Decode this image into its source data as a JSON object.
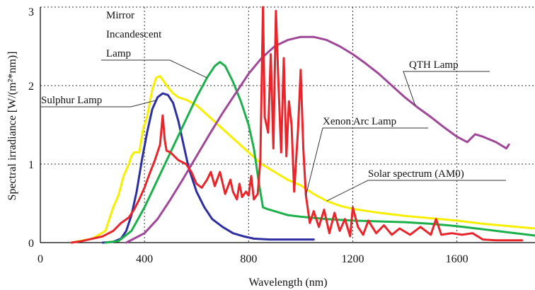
{
  "chart_data": {
    "type": "line",
    "title": "",
    "xlabel": "Wavelength (nm)",
    "ylabel": "Spectral irradiance [W/(m²*nm)]",
    "xlim": [
      0,
      1900
    ],
    "ylim": [
      0,
      3
    ],
    "xticks": [
      0,
      400,
      800,
      1200,
      1600
    ],
    "yticks": [
      0,
      1,
      2,
      3
    ],
    "grid": true,
    "series": [
      {
        "name": "Solar spectrum (AM0)",
        "color": "#f7ee00",
        "points": [
          [
            120,
            0
          ],
          [
            200,
            0.05
          ],
          [
            250,
            0.15
          ],
          [
            280,
            0.45
          ],
          [
            300,
            0.6
          ],
          [
            320,
            0.85
          ],
          [
            340,
            1.0
          ],
          [
            350,
            1.1
          ],
          [
            360,
            1.15
          ],
          [
            380,
            1.15
          ],
          [
            395,
            1.45
          ],
          [
            410,
            1.6
          ],
          [
            430,
            1.95
          ],
          [
            445,
            2.1
          ],
          [
            460,
            2.12
          ],
          [
            475,
            2.05
          ],
          [
            490,
            1.98
          ],
          [
            510,
            1.9
          ],
          [
            530,
            1.85
          ],
          [
            560,
            1.82
          ],
          [
            600,
            1.75
          ],
          [
            650,
            1.6
          ],
          [
            700,
            1.45
          ],
          [
            750,
            1.3
          ],
          [
            800,
            1.15
          ],
          [
            850,
            1.0
          ],
          [
            900,
            0.9
          ],
          [
            950,
            0.8
          ],
          [
            1000,
            0.73
          ],
          [
            1050,
            0.62
          ],
          [
            1100,
            0.53
          ],
          [
            1150,
            0.47
          ],
          [
            1200,
            0.43
          ],
          [
            1300,
            0.38
          ],
          [
            1400,
            0.34
          ],
          [
            1500,
            0.31
          ],
          [
            1600,
            0.28
          ],
          [
            1700,
            0.24
          ],
          [
            1800,
            0.21
          ],
          [
            1900,
            0.18
          ]
        ]
      },
      {
        "name": "Sulphur Lamp",
        "color": "#2d2ea0",
        "points": [
          [
            240,
            0
          ],
          [
            280,
            0.01
          ],
          [
            310,
            0.05
          ],
          [
            330,
            0.15
          ],
          [
            350,
            0.35
          ],
          [
            370,
            0.65
          ],
          [
            390,
            1.05
          ],
          [
            410,
            1.4
          ],
          [
            430,
            1.7
          ],
          [
            450,
            1.85
          ],
          [
            470,
            1.9
          ],
          [
            490,
            1.88
          ],
          [
            510,
            1.78
          ],
          [
            530,
            1.55
          ],
          [
            550,
            1.25
          ],
          [
            570,
            0.95
          ],
          [
            600,
            0.65
          ],
          [
            630,
            0.45
          ],
          [
            660,
            0.3
          ],
          [
            700,
            0.2
          ],
          [
            740,
            0.12
          ],
          [
            780,
            0.08
          ],
          [
            820,
            0.05
          ],
          [
            880,
            0.04
          ],
          [
            950,
            0.04
          ],
          [
            1050,
            0.04
          ]
        ]
      },
      {
        "name": "Mirror Incandescent Lamp",
        "color": "#1cb04a",
        "points": [
          [
            250,
            0
          ],
          [
            300,
            0.02
          ],
          [
            350,
            0.15
          ],
          [
            400,
            0.45
          ],
          [
            450,
            0.8
          ],
          [
            500,
            1.15
          ],
          [
            550,
            1.5
          ],
          [
            600,
            1.85
          ],
          [
            640,
            2.1
          ],
          [
            670,
            2.25
          ],
          [
            690,
            2.3
          ],
          [
            710,
            2.25
          ],
          [
            740,
            2.05
          ],
          [
            770,
            1.8
          ],
          [
            800,
            1.5
          ],
          [
            820,
            1.2
          ],
          [
            840,
            0.75
          ],
          [
            855,
            0.45
          ],
          [
            870,
            0.43
          ],
          [
            900,
            0.4
          ],
          [
            950,
            0.35
          ],
          [
            1000,
            0.33
          ],
          [
            1100,
            0.3
          ],
          [
            1200,
            0.28
          ],
          [
            1300,
            0.27
          ],
          [
            1400,
            0.26
          ],
          [
            1500,
            0.24
          ],
          [
            1600,
            0.21
          ],
          [
            1700,
            0.17
          ],
          [
            1800,
            0.13
          ],
          [
            1900,
            0.09
          ]
        ]
      },
      {
        "name": "QTH Lamp",
        "color": "#a0479a",
        "points": [
          [
            330,
            0
          ],
          [
            400,
            0.12
          ],
          [
            450,
            0.3
          ],
          [
            500,
            0.55
          ],
          [
            550,
            0.82
          ],
          [
            600,
            1.1
          ],
          [
            650,
            1.38
          ],
          [
            700,
            1.65
          ],
          [
            750,
            1.9
          ],
          [
            800,
            2.15
          ],
          [
            850,
            2.35
          ],
          [
            900,
            2.5
          ],
          [
            950,
            2.58
          ],
          [
            1000,
            2.62
          ],
          [
            1050,
            2.62
          ],
          [
            1100,
            2.58
          ],
          [
            1150,
            2.5
          ],
          [
            1200,
            2.4
          ],
          [
            1250,
            2.28
          ],
          [
            1300,
            2.15
          ],
          [
            1350,
            2.0
          ],
          [
            1400,
            1.85
          ],
          [
            1450,
            1.72
          ],
          [
            1500,
            1.6
          ],
          [
            1550,
            1.47
          ],
          [
            1600,
            1.35
          ],
          [
            1640,
            1.28
          ],
          [
            1670,
            1.38
          ],
          [
            1700,
            1.35
          ],
          [
            1750,
            1.28
          ],
          [
            1790,
            1.2
          ],
          [
            1800,
            1.25
          ]
        ]
      },
      {
        "name": "Xenon Arc Lamp",
        "color": "#e8252b",
        "points": [
          [
            120,
            0
          ],
          [
            160,
            0.02
          ],
          [
            200,
            0.05
          ],
          [
            240,
            0.08
          ],
          [
            280,
            0.15
          ],
          [
            310,
            0.25
          ],
          [
            340,
            0.32
          ],
          [
            360,
            0.42
          ],
          [
            380,
            0.55
          ],
          [
            400,
            0.7
          ],
          [
            420,
            0.88
          ],
          [
            440,
            1.05
          ],
          [
            455,
            1.2
          ],
          [
            460,
            1.25
          ],
          [
            470,
            1.62
          ],
          [
            478,
            1.3
          ],
          [
            485,
            1.17
          ],
          [
            500,
            1.15
          ],
          [
            530,
            1.05
          ],
          [
            560,
            1.0
          ],
          [
            580,
            0.9
          ],
          [
            600,
            0.75
          ],
          [
            620,
            0.7
          ],
          [
            640,
            0.8
          ],
          [
            655,
            0.9
          ],
          [
            670,
            0.72
          ],
          [
            690,
            0.9
          ],
          [
            710,
            0.62
          ],
          [
            730,
            0.8
          ],
          [
            740,
            0.65
          ],
          [
            755,
            0.55
          ],
          [
            765,
            0.75
          ],
          [
            775,
            0.58
          ],
          [
            790,
            0.65
          ],
          [
            800,
            0.6
          ],
          [
            810,
            0.85
          ],
          [
            820,
            0.55
          ],
          [
            835,
            0.62
          ],
          [
            845,
            1.05
          ],
          [
            855,
            3.0
          ],
          [
            862,
            1.6
          ],
          [
            875,
            1.4
          ],
          [
            885,
            2.4
          ],
          [
            895,
            1.2
          ],
          [
            905,
            2.95
          ],
          [
            915,
            2.0
          ],
          [
            925,
            1.15
          ],
          [
            935,
            2.35
          ],
          [
            945,
            1.1
          ],
          [
            955,
            1.8
          ],
          [
            965,
            1.5
          ],
          [
            975,
            0.65
          ],
          [
            990,
            1.45
          ],
          [
            1000,
            2.2
          ],
          [
            1010,
            1.2
          ],
          [
            1020,
            0.6
          ],
          [
            1035,
            0.25
          ],
          [
            1050,
            0.4
          ],
          [
            1070,
            0.2
          ],
          [
            1090,
            0.42
          ],
          [
            1110,
            0.12
          ],
          [
            1130,
            0.38
          ],
          [
            1150,
            0.15
          ],
          [
            1170,
            0.3
          ],
          [
            1190,
            0.08
          ],
          [
            1200,
            0.45
          ],
          [
            1220,
            0.2
          ],
          [
            1240,
            0.1
          ],
          [
            1260,
            0.28
          ],
          [
            1290,
            0.12
          ],
          [
            1320,
            0.22
          ],
          [
            1350,
            0.1
          ],
          [
            1380,
            0.18
          ],
          [
            1420,
            0.1
          ],
          [
            1460,
            0.2
          ],
          [
            1500,
            0.1
          ],
          [
            1520,
            0.3
          ],
          [
            1540,
            0.1
          ],
          [
            1580,
            0.12
          ],
          [
            1620,
            0.1
          ],
          [
            1660,
            0.12
          ],
          [
            1700,
            0.04
          ],
          [
            1750,
            0.03
          ],
          [
            1800,
            0.03
          ],
          [
            1850,
            0.03
          ]
        ]
      }
    ],
    "annotations": [
      {
        "lines": [
          "Mirror",
          "Incandescent",
          "Lamp"
        ],
        "series": "Mirror Incandescent Lamp"
      },
      {
        "lines": [
          "Sulphur Lamp"
        ],
        "series": "Sulphur Lamp"
      },
      {
        "lines": [
          "QTH Lamp"
        ],
        "series": "QTH Lamp"
      },
      {
        "lines": [
          "Xenon Arc Lamp"
        ],
        "series": "Xenon Arc Lamp"
      },
      {
        "lines": [
          "Solar spectrum (AM0)"
        ],
        "series": "Solar spectrum (AM0)"
      }
    ]
  }
}
